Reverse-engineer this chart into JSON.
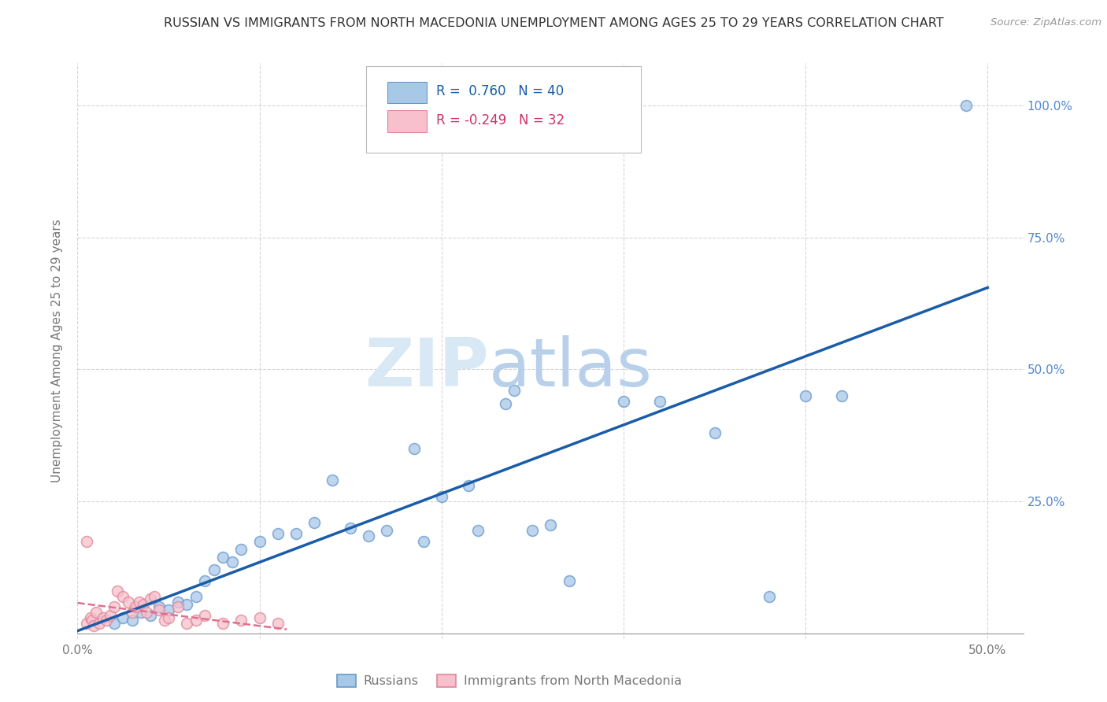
{
  "title": "RUSSIAN VS IMMIGRANTS FROM NORTH MACEDONIA UNEMPLOYMENT AMONG AGES 25 TO 29 YEARS CORRELATION CHART",
  "source": "Source: ZipAtlas.com",
  "ylabel": "Unemployment Among Ages 25 to 29 years",
  "xlim": [
    0.0,
    0.52
  ],
  "ylim": [
    -0.01,
    1.08
  ],
  "xticks": [
    0.0,
    0.1,
    0.2,
    0.3,
    0.4,
    0.5
  ],
  "xticklabels": [
    "0.0%",
    "",
    "",
    "",
    "",
    "50.0%"
  ],
  "yticks": [
    0.0,
    0.25,
    0.5,
    0.75,
    1.0
  ],
  "yticklabels": [
    "",
    "25.0%",
    "50.0%",
    "75.0%",
    "100.0%"
  ],
  "blue_dots_x": [
    0.02,
    0.025,
    0.03,
    0.035,
    0.04,
    0.045,
    0.05,
    0.055,
    0.06,
    0.065,
    0.07,
    0.075,
    0.08,
    0.085,
    0.09,
    0.1,
    0.11,
    0.12,
    0.13,
    0.14,
    0.15,
    0.16,
    0.17,
    0.185,
    0.19,
    0.2,
    0.215,
    0.22,
    0.235,
    0.24,
    0.25,
    0.26,
    0.27,
    0.3,
    0.32,
    0.35,
    0.38,
    0.4,
    0.42,
    0.488
  ],
  "blue_dots_y": [
    0.02,
    0.03,
    0.025,
    0.04,
    0.035,
    0.05,
    0.045,
    0.06,
    0.055,
    0.07,
    0.1,
    0.12,
    0.145,
    0.135,
    0.16,
    0.175,
    0.19,
    0.19,
    0.21,
    0.29,
    0.2,
    0.185,
    0.195,
    0.35,
    0.175,
    0.26,
    0.28,
    0.195,
    0.435,
    0.46,
    0.195,
    0.205,
    0.1,
    0.44,
    0.44,
    0.38,
    0.07,
    0.45,
    0.45,
    1.0
  ],
  "pink_dots_x": [
    0.005,
    0.007,
    0.008,
    0.009,
    0.01,
    0.012,
    0.014,
    0.016,
    0.018,
    0.02,
    0.022,
    0.025,
    0.028,
    0.03,
    0.032,
    0.034,
    0.036,
    0.038,
    0.04,
    0.042,
    0.045,
    0.048,
    0.05,
    0.055,
    0.06,
    0.065,
    0.07,
    0.08,
    0.09,
    0.1,
    0.11,
    0.005
  ],
  "pink_dots_y": [
    0.02,
    0.03,
    0.025,
    0.015,
    0.04,
    0.02,
    0.03,
    0.025,
    0.035,
    0.05,
    0.08,
    0.07,
    0.06,
    0.04,
    0.05,
    0.06,
    0.055,
    0.04,
    0.065,
    0.07,
    0.045,
    0.025,
    0.03,
    0.05,
    0.02,
    0.025,
    0.035,
    0.02,
    0.025,
    0.03,
    0.02,
    0.175
  ],
  "blue_line_x": [
    0.0,
    0.5
  ],
  "blue_line_y": [
    0.005,
    0.655
  ],
  "pink_line_x": [
    0.0,
    0.115
  ],
  "pink_line_y": [
    0.058,
    0.008
  ],
  "grid_color": "#cccccc",
  "blue_dot_color": "#a8c8e8",
  "blue_dot_edge": "#6699cc",
  "blue_line_color": "#1a5ca8",
  "pink_dot_color": "#f8c0cc",
  "pink_dot_edge": "#dd8899",
  "pink_line_color": "#e07090",
  "title_color": "#333333",
  "axis_label_color": "#777777",
  "right_axis_color": "#5588cc",
  "background_color": "#ffffff",
  "legend_blue_text_color": "#1a5ca8",
  "legend_pink_text_color": "#cc3366",
  "watermark_zip_color": "#d8e8f4",
  "watermark_atlas_color": "#b8d0ea"
}
